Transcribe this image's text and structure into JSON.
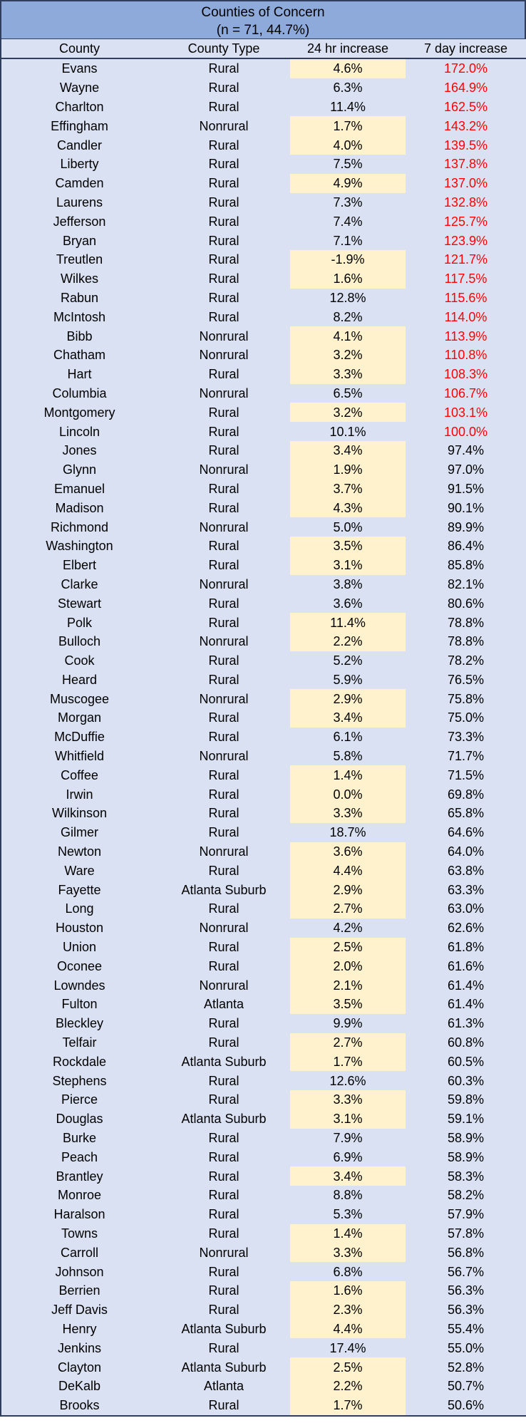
{
  "title": {
    "line1": "Counties of Concern",
    "line2": "(n = 71, 44.7%)"
  },
  "columns": [
    "County",
    "County Type",
    "24 hr increase",
    "7 day increase"
  ],
  "colors": {
    "title_bg": "#8eaadb",
    "table_bg": "#d9e1f2",
    "highlight_bg": "#fff2cc",
    "red_text": "#ff0000",
    "border": "#2f3e5c"
  },
  "rows": [
    {
      "county": "Evans",
      "type": "Rural",
      "inc24": "4.6%",
      "inc7": "172.0%",
      "hl": true,
      "red": true
    },
    {
      "county": "Wayne",
      "type": "Rural",
      "inc24": "6.3%",
      "inc7": "164.9%",
      "hl": false,
      "red": true
    },
    {
      "county": "Charlton",
      "type": "Rural",
      "inc24": "11.4%",
      "inc7": "162.5%",
      "hl": false,
      "red": true
    },
    {
      "county": "Effingham",
      "type": "Nonrural",
      "inc24": "1.7%",
      "inc7": "143.2%",
      "hl": true,
      "red": true
    },
    {
      "county": "Candler",
      "type": "Rural",
      "inc24": "4.0%",
      "inc7": "139.5%",
      "hl": true,
      "red": true
    },
    {
      "county": "Liberty",
      "type": "Rural",
      "inc24": "7.5%",
      "inc7": "137.8%",
      "hl": false,
      "red": true
    },
    {
      "county": "Camden",
      "type": "Rural",
      "inc24": "4.9%",
      "inc7": "137.0%",
      "hl": true,
      "red": true
    },
    {
      "county": "Laurens",
      "type": "Rural",
      "inc24": "7.3%",
      "inc7": "132.8%",
      "hl": false,
      "red": true
    },
    {
      "county": "Jefferson",
      "type": "Rural",
      "inc24": "7.4%",
      "inc7": "125.7%",
      "hl": false,
      "red": true
    },
    {
      "county": "Bryan",
      "type": "Rural",
      "inc24": "7.1%",
      "inc7": "123.9%",
      "hl": false,
      "red": true
    },
    {
      "county": "Treutlen",
      "type": "Rural",
      "inc24": "-1.9%",
      "inc7": "121.7%",
      "hl": true,
      "red": true
    },
    {
      "county": "Wilkes",
      "type": "Rural",
      "inc24": "1.6%",
      "inc7": "117.5%",
      "hl": true,
      "red": true
    },
    {
      "county": "Rabun",
      "type": "Rural",
      "inc24": "12.8%",
      "inc7": "115.6%",
      "hl": false,
      "red": true
    },
    {
      "county": "McIntosh",
      "type": "Rural",
      "inc24": "8.2%",
      "inc7": "114.0%",
      "hl": false,
      "red": true
    },
    {
      "county": "Bibb",
      "type": "Nonrural",
      "inc24": "4.1%",
      "inc7": "113.9%",
      "hl": true,
      "red": true
    },
    {
      "county": "Chatham",
      "type": "Nonrural",
      "inc24": "3.2%",
      "inc7": "110.8%",
      "hl": true,
      "red": true
    },
    {
      "county": "Hart",
      "type": "Rural",
      "inc24": "3.3%",
      "inc7": "108.3%",
      "hl": true,
      "red": true
    },
    {
      "county": "Columbia",
      "type": "Nonrural",
      "inc24": "6.5%",
      "inc7": "106.7%",
      "hl": false,
      "red": true
    },
    {
      "county": "Montgomery",
      "type": "Rural",
      "inc24": "3.2%",
      "inc7": "103.1%",
      "hl": true,
      "red": true
    },
    {
      "county": "Lincoln",
      "type": "Rural",
      "inc24": "10.1%",
      "inc7": "100.0%",
      "hl": false,
      "red": true
    },
    {
      "county": "Jones",
      "type": "Rural",
      "inc24": "3.4%",
      "inc7": "97.4%",
      "hl": true,
      "red": false
    },
    {
      "county": "Glynn",
      "type": "Nonrural",
      "inc24": "1.9%",
      "inc7": "97.0%",
      "hl": true,
      "red": false
    },
    {
      "county": "Emanuel",
      "type": "Rural",
      "inc24": "3.7%",
      "inc7": "91.5%",
      "hl": true,
      "red": false
    },
    {
      "county": "Madison",
      "type": "Rural",
      "inc24": "4.3%",
      "inc7": "90.1%",
      "hl": true,
      "red": false
    },
    {
      "county": "Richmond",
      "type": "Nonrural",
      "inc24": "5.0%",
      "inc7": "89.9%",
      "hl": false,
      "red": false
    },
    {
      "county": "Washington",
      "type": "Rural",
      "inc24": "3.5%",
      "inc7": "86.4%",
      "hl": true,
      "red": false
    },
    {
      "county": "Elbert",
      "type": "Rural",
      "inc24": "3.1%",
      "inc7": "85.8%",
      "hl": true,
      "red": false
    },
    {
      "county": "Clarke",
      "type": "Nonrural",
      "inc24": "3.8%",
      "inc7": "82.1%",
      "hl": false,
      "red": false
    },
    {
      "county": "Stewart",
      "type": "Rural",
      "inc24": "3.6%",
      "inc7": "80.6%",
      "hl": false,
      "red": false
    },
    {
      "county": "Polk",
      "type": "Rural",
      "inc24": "11.4%",
      "inc7": "78.8%",
      "hl": true,
      "red": false
    },
    {
      "county": "Bulloch",
      "type": "Nonrural",
      "inc24": "2.2%",
      "inc7": "78.8%",
      "hl": true,
      "red": false
    },
    {
      "county": "Cook",
      "type": "Rural",
      "inc24": "5.2%",
      "inc7": "78.2%",
      "hl": false,
      "red": false
    },
    {
      "county": "Heard",
      "type": "Rural",
      "inc24": "5.9%",
      "inc7": "76.5%",
      "hl": false,
      "red": false
    },
    {
      "county": "Muscogee",
      "type": "Nonrural",
      "inc24": "2.9%",
      "inc7": "75.8%",
      "hl": true,
      "red": false
    },
    {
      "county": "Morgan",
      "type": "Rural",
      "inc24": "3.4%",
      "inc7": "75.0%",
      "hl": true,
      "red": false
    },
    {
      "county": "McDuffie",
      "type": "Rural",
      "inc24": "6.1%",
      "inc7": "73.3%",
      "hl": false,
      "red": false
    },
    {
      "county": "Whitfield",
      "type": "Nonrural",
      "inc24": "5.8%",
      "inc7": "71.7%",
      "hl": false,
      "red": false
    },
    {
      "county": "Coffee",
      "type": "Rural",
      "inc24": "1.4%",
      "inc7": "71.5%",
      "hl": true,
      "red": false
    },
    {
      "county": "Irwin",
      "type": "Rural",
      "inc24": "0.0%",
      "inc7": "69.8%",
      "hl": true,
      "red": false
    },
    {
      "county": "Wilkinson",
      "type": "Rural",
      "inc24": "3.3%",
      "inc7": "65.8%",
      "hl": true,
      "red": false
    },
    {
      "county": "Gilmer",
      "type": "Rural",
      "inc24": "18.7%",
      "inc7": "64.6%",
      "hl": false,
      "red": false
    },
    {
      "county": "Newton",
      "type": "Nonrural",
      "inc24": "3.6%",
      "inc7": "64.0%",
      "hl": true,
      "red": false
    },
    {
      "county": "Ware",
      "type": "Rural",
      "inc24": "4.4%",
      "inc7": "63.8%",
      "hl": true,
      "red": false
    },
    {
      "county": "Fayette",
      "type": "Atlanta Suburb",
      "inc24": "2.9%",
      "inc7": "63.3%",
      "hl": true,
      "red": false
    },
    {
      "county": "Long",
      "type": "Rural",
      "inc24": "2.7%",
      "inc7": "63.0%",
      "hl": true,
      "red": false
    },
    {
      "county": "Houston",
      "type": "Nonrural",
      "inc24": "4.2%",
      "inc7": "62.6%",
      "hl": false,
      "red": false
    },
    {
      "county": "Union",
      "type": "Rural",
      "inc24": "2.5%",
      "inc7": "61.8%",
      "hl": true,
      "red": false
    },
    {
      "county": "Oconee",
      "type": "Rural",
      "inc24": "2.0%",
      "inc7": "61.6%",
      "hl": true,
      "red": false
    },
    {
      "county": "Lowndes",
      "type": "Nonrural",
      "inc24": "2.1%",
      "inc7": "61.4%",
      "hl": true,
      "red": false
    },
    {
      "county": "Fulton",
      "type": "Atlanta",
      "inc24": "3.5%",
      "inc7": "61.4%",
      "hl": true,
      "red": false
    },
    {
      "county": "Bleckley",
      "type": "Rural",
      "inc24": "9.9%",
      "inc7": "61.3%",
      "hl": false,
      "red": false
    },
    {
      "county": "Telfair",
      "type": "Rural",
      "inc24": "2.7%",
      "inc7": "60.8%",
      "hl": true,
      "red": false
    },
    {
      "county": "Rockdale",
      "type": "Atlanta Suburb",
      "inc24": "1.7%",
      "inc7": "60.5%",
      "hl": true,
      "red": false
    },
    {
      "county": "Stephens",
      "type": "Rural",
      "inc24": "12.6%",
      "inc7": "60.3%",
      "hl": false,
      "red": false
    },
    {
      "county": "Pierce",
      "type": "Rural",
      "inc24": "3.3%",
      "inc7": "59.8%",
      "hl": true,
      "red": false
    },
    {
      "county": "Douglas",
      "type": "Atlanta Suburb",
      "inc24": "3.1%",
      "inc7": "59.1%",
      "hl": true,
      "red": false
    },
    {
      "county": "Burke",
      "type": "Rural",
      "inc24": "7.9%",
      "inc7": "58.9%",
      "hl": false,
      "red": false
    },
    {
      "county": "Peach",
      "type": "Rural",
      "inc24": "6.9%",
      "inc7": "58.9%",
      "hl": false,
      "red": false
    },
    {
      "county": "Brantley",
      "type": "Rural",
      "inc24": "3.4%",
      "inc7": "58.3%",
      "hl": true,
      "red": false
    },
    {
      "county": "Monroe",
      "type": "Rural",
      "inc24": "8.8%",
      "inc7": "58.2%",
      "hl": false,
      "red": false
    },
    {
      "county": "Haralson",
      "type": "Rural",
      "inc24": "5.3%",
      "inc7": "57.9%",
      "hl": false,
      "red": false
    },
    {
      "county": "Towns",
      "type": "Rural",
      "inc24": "1.4%",
      "inc7": "57.8%",
      "hl": true,
      "red": false
    },
    {
      "county": "Carroll",
      "type": "Nonrural",
      "inc24": "3.3%",
      "inc7": "56.8%",
      "hl": true,
      "red": false
    },
    {
      "county": "Johnson",
      "type": "Rural",
      "inc24": "6.8%",
      "inc7": "56.7%",
      "hl": false,
      "red": false
    },
    {
      "county": "Berrien",
      "type": "Rural",
      "inc24": "1.6%",
      "inc7": "56.3%",
      "hl": true,
      "red": false
    },
    {
      "county": "Jeff Davis",
      "type": "Rural",
      "inc24": "2.3%",
      "inc7": "56.3%",
      "hl": true,
      "red": false
    },
    {
      "county": "Henry",
      "type": "Atlanta Suburb",
      "inc24": "4.4%",
      "inc7": "55.4%",
      "hl": true,
      "red": false
    },
    {
      "county": "Jenkins",
      "type": "Rural",
      "inc24": "17.4%",
      "inc7": "55.0%",
      "hl": false,
      "red": false
    },
    {
      "county": "Clayton",
      "type": "Atlanta Suburb",
      "inc24": "2.5%",
      "inc7": "52.8%",
      "hl": true,
      "red": false
    },
    {
      "county": "DeKalb",
      "type": "Atlanta",
      "inc24": "2.2%",
      "inc7": "50.7%",
      "hl": true,
      "red": false
    },
    {
      "county": "Brooks",
      "type": "Rural",
      "inc24": "1.7%",
      "inc7": "50.6%",
      "hl": true,
      "red": false
    }
  ]
}
